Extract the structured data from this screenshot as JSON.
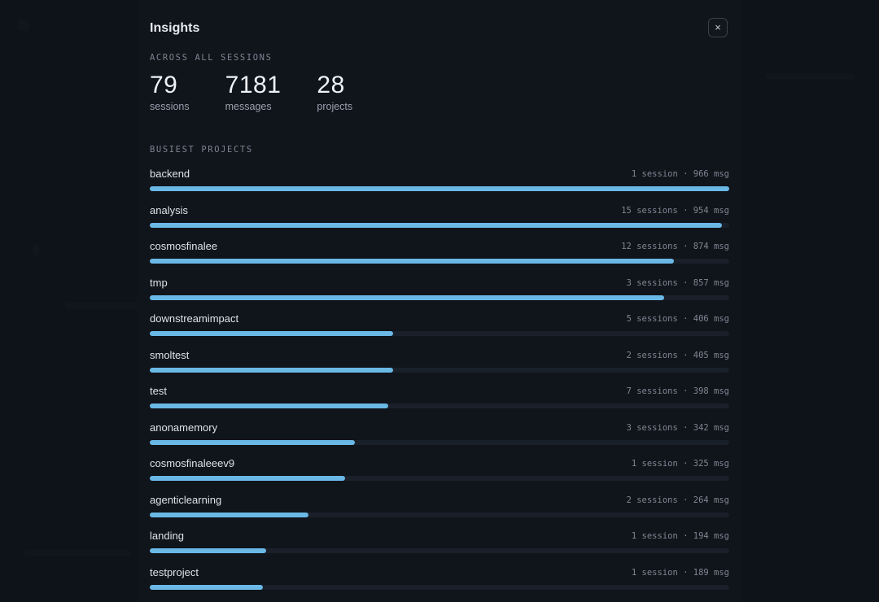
{
  "modal": {
    "title": "Insights",
    "close_label": "×"
  },
  "summary": {
    "label": "ACROSS ALL SESSIONS",
    "stats": [
      {
        "value": "79",
        "label": "sessions"
      },
      {
        "value": "7181",
        "label": "messages"
      },
      {
        "value": "28",
        "label": "projects"
      }
    ]
  },
  "busiest": {
    "label": "BUSIEST PROJECTS",
    "max_messages": 966,
    "projects": [
      {
        "name": "backend",
        "meta": "1 session · 966 msg",
        "messages": 966
      },
      {
        "name": "analysis",
        "meta": "15 sessions · 954 msg",
        "messages": 954
      },
      {
        "name": "cosmosfinalee",
        "meta": "12 sessions · 874 msg",
        "messages": 874
      },
      {
        "name": "tmp",
        "meta": "3 sessions · 857 msg",
        "messages": 857
      },
      {
        "name": "downstreamimpact",
        "meta": "5 sessions · 406 msg",
        "messages": 406
      },
      {
        "name": "smoltest",
        "meta": "2 sessions · 405 msg",
        "messages": 405
      },
      {
        "name": "test",
        "meta": "7 sessions · 398 msg",
        "messages": 398
      },
      {
        "name": "anonamemory",
        "meta": "3 sessions · 342 msg",
        "messages": 342
      },
      {
        "name": "cosmosfinaleeev9",
        "meta": "1 session · 325 msg",
        "messages": 325
      },
      {
        "name": "agenticlearning",
        "meta": "2 sessions · 264 msg",
        "messages": 264
      },
      {
        "name": "landing",
        "meta": "1 session · 194 msg",
        "messages": 194
      },
      {
        "name": "testproject",
        "meta": "1 session · 189 msg",
        "messages": 189
      }
    ]
  },
  "colors": {
    "bar_fill": "#6ab8e6",
    "bar_track": "#1a2029",
    "modal_bg": "#10141b"
  }
}
